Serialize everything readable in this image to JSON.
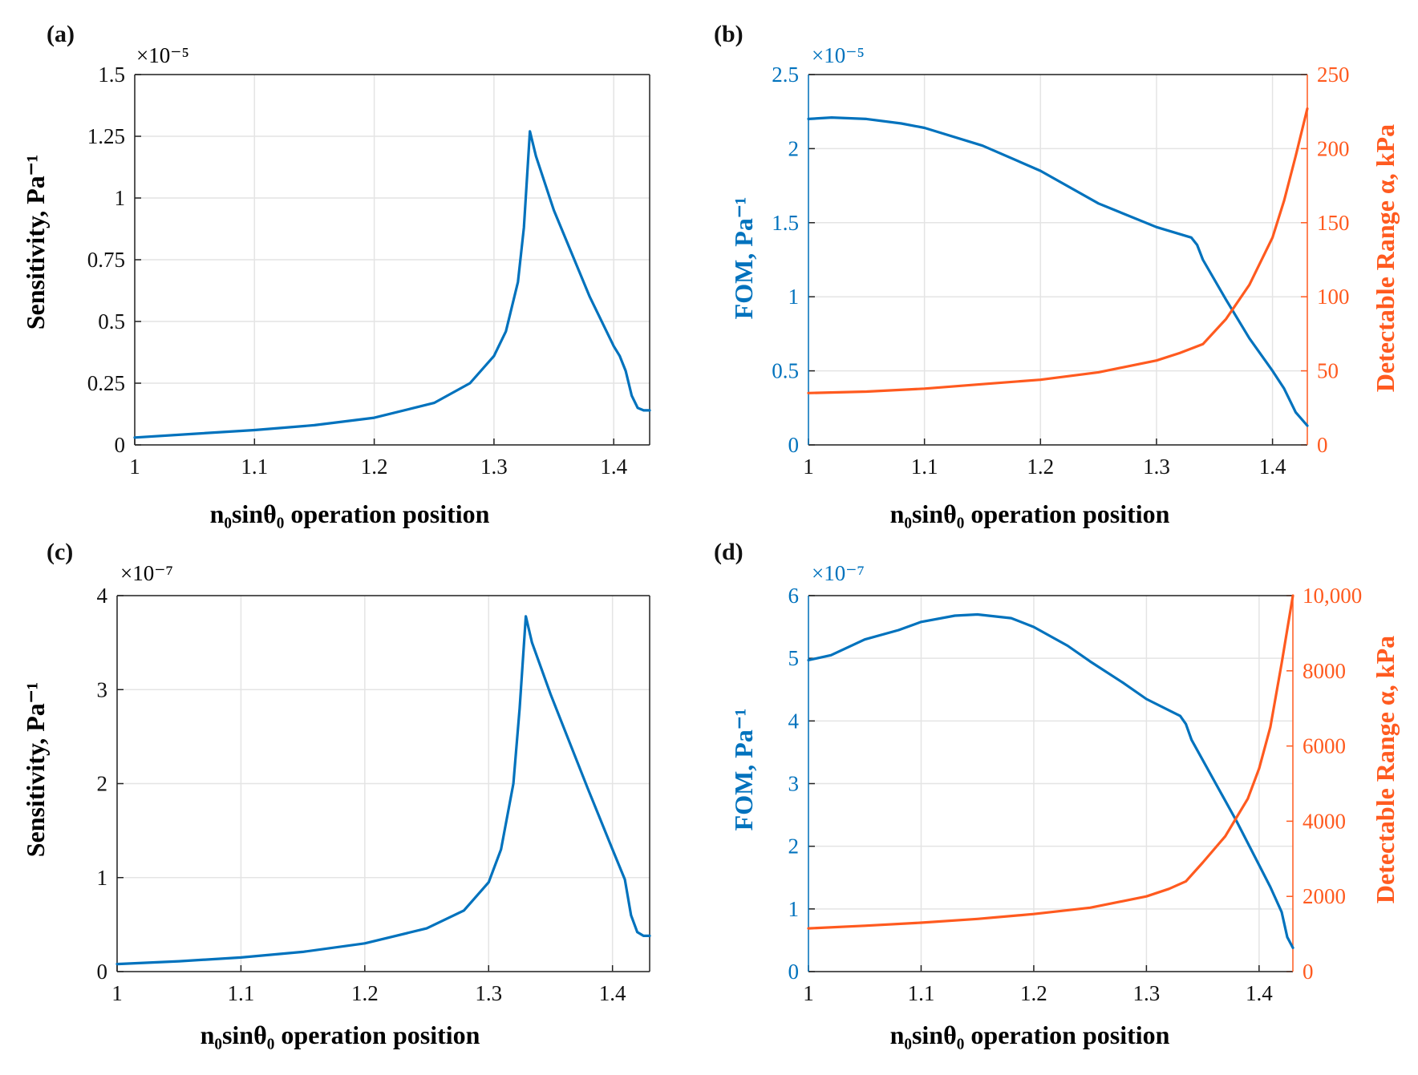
{
  "colors": {
    "blue": "#0072BD",
    "orange": "#FF5A1F",
    "grid": "#e4e4e4",
    "axis": "#222222"
  },
  "chart_data": [
    {
      "id": "a",
      "label": "(a)",
      "type": "line",
      "xlabel": "n₀sinθ₀ operation position",
      "ylabel": "Sensitivity, Pa⁻¹",
      "exponent": "×10⁻⁵",
      "xlim": [
        1,
        1.43
      ],
      "ylim": [
        0,
        1.5
      ],
      "xticks": [
        1,
        1.1,
        1.2,
        1.3,
        1.4
      ],
      "xtick_labels": [
        "1",
        "1.1",
        "1.2",
        "1.3",
        "1.4"
      ],
      "yticks": [
        0,
        0.25,
        0.5,
        0.75,
        1,
        1.25,
        1.5
      ],
      "ytick_labels": [
        "0",
        "0.25",
        "0.5",
        "0.75",
        "1",
        "1.25",
        "1.5"
      ],
      "series": [
        {
          "name": "Sensitivity",
          "axis": "left",
          "color": "blue",
          "x": [
            1.0,
            1.05,
            1.1,
            1.15,
            1.2,
            1.25,
            1.28,
            1.3,
            1.31,
            1.32,
            1.325,
            1.33,
            1.335,
            1.35,
            1.38,
            1.4,
            1.405,
            1.41,
            1.415,
            1.42,
            1.425,
            1.43
          ],
          "y": [
            0.03,
            0.045,
            0.06,
            0.08,
            0.11,
            0.17,
            0.25,
            0.36,
            0.46,
            0.66,
            0.88,
            1.27,
            1.17,
            0.95,
            0.6,
            0.4,
            0.36,
            0.3,
            0.2,
            0.15,
            0.14,
            0.14
          ]
        }
      ]
    },
    {
      "id": "b",
      "label": "(b)",
      "type": "line",
      "xlabel": "n₀sinθ₀ operation position",
      "ylabel": "FOM, Pa⁻¹",
      "ylabel_right": "Detectable Range α, kPa",
      "exponent": "×10⁻⁵",
      "xlim": [
        1,
        1.43
      ],
      "ylim": [
        0,
        2.5
      ],
      "ylim_right": [
        0,
        250
      ],
      "xticks": [
        1,
        1.1,
        1.2,
        1.3,
        1.4
      ],
      "xtick_labels": [
        "1",
        "1.1",
        "1.2",
        "1.3",
        "1.4"
      ],
      "yticks": [
        0,
        0.5,
        1,
        1.5,
        2,
        2.5
      ],
      "ytick_labels": [
        "0",
        "0.5",
        "1",
        "1.5",
        "2",
        "2.5"
      ],
      "yticks_right": [
        0,
        50,
        100,
        150,
        200,
        250
      ],
      "ytick_labels_right": [
        "0",
        "50",
        "100",
        "150",
        "200",
        "250"
      ],
      "series": [
        {
          "name": "FOM",
          "axis": "left",
          "color": "blue",
          "x": [
            1.0,
            1.02,
            1.05,
            1.08,
            1.1,
            1.15,
            1.2,
            1.25,
            1.3,
            1.33,
            1.335,
            1.34,
            1.36,
            1.38,
            1.4,
            1.41,
            1.42,
            1.43
          ],
          "y": [
            2.2,
            2.21,
            2.2,
            2.17,
            2.14,
            2.02,
            1.85,
            1.63,
            1.47,
            1.4,
            1.35,
            1.25,
            0.98,
            0.72,
            0.5,
            0.38,
            0.22,
            0.13
          ]
        },
        {
          "name": "Detectable Range",
          "axis": "right",
          "color": "orange",
          "x": [
            1.0,
            1.05,
            1.1,
            1.15,
            1.2,
            1.25,
            1.3,
            1.32,
            1.34,
            1.36,
            1.38,
            1.4,
            1.41,
            1.42,
            1.43
          ],
          "y": [
            35,
            36,
            38,
            41,
            44,
            49,
            57,
            62,
            68,
            85,
            108,
            140,
            165,
            195,
            227
          ]
        }
      ]
    },
    {
      "id": "c",
      "label": "(c)",
      "type": "line",
      "xlabel": "n₀sinθ₀ operation position",
      "ylabel": "Sensitivity, Pa⁻¹",
      "exponent": "×10⁻⁷",
      "xlim": [
        1,
        1.43
      ],
      "ylim": [
        0,
        4
      ],
      "xticks": [
        1,
        1.1,
        1.2,
        1.3,
        1.4
      ],
      "xtick_labels": [
        "1",
        "1.1",
        "1.2",
        "1.3",
        "1.4"
      ],
      "yticks": [
        0,
        1,
        2,
        3,
        4
      ],
      "ytick_labels": [
        "0",
        "1",
        "2",
        "3",
        "4"
      ],
      "series": [
        {
          "name": "Sensitivity",
          "axis": "left",
          "color": "blue",
          "x": [
            1.0,
            1.05,
            1.1,
            1.15,
            1.2,
            1.25,
            1.28,
            1.3,
            1.31,
            1.32,
            1.325,
            1.33,
            1.335,
            1.35,
            1.38,
            1.4,
            1.41,
            1.415,
            1.42,
            1.425,
            1.43
          ],
          "y": [
            0.08,
            0.11,
            0.15,
            0.21,
            0.3,
            0.46,
            0.65,
            0.95,
            1.3,
            2.0,
            2.8,
            3.78,
            3.5,
            2.95,
            1.95,
            1.3,
            0.98,
            0.6,
            0.42,
            0.38,
            0.38
          ]
        }
      ]
    },
    {
      "id": "d",
      "label": "(d)",
      "type": "line",
      "xlabel": "n₀sinθ₀ operation position",
      "ylabel": "FOM, Pa⁻¹",
      "ylabel_right": "Detectable Range α, kPa",
      "exponent": "×10⁻⁷",
      "xlim": [
        1,
        1.43
      ],
      "ylim": [
        0,
        6
      ],
      "ylim_right": [
        0,
        10000
      ],
      "xticks": [
        1,
        1.1,
        1.2,
        1.3,
        1.4
      ],
      "xtick_labels": [
        "1",
        "1.1",
        "1.2",
        "1.3",
        "1.4"
      ],
      "yticks": [
        0,
        1,
        2,
        3,
        4,
        5,
        6
      ],
      "ytick_labels": [
        "0",
        "1",
        "2",
        "3",
        "4",
        "5",
        "6"
      ],
      "yticks_right": [
        0,
        2000,
        4000,
        6000,
        8000,
        10000
      ],
      "ytick_labels_right": [
        "0",
        "2000",
        "4000",
        "6000",
        "8000",
        "10,000"
      ],
      "series": [
        {
          "name": "FOM",
          "axis": "left",
          "color": "blue",
          "x": [
            1.0,
            1.02,
            1.05,
            1.08,
            1.1,
            1.13,
            1.15,
            1.18,
            1.2,
            1.23,
            1.25,
            1.28,
            1.3,
            1.33,
            1.335,
            1.34,
            1.36,
            1.38,
            1.4,
            1.41,
            1.42,
            1.425,
            1.43
          ],
          "y": [
            4.97,
            5.05,
            5.3,
            5.45,
            5.58,
            5.68,
            5.7,
            5.64,
            5.5,
            5.2,
            4.95,
            4.6,
            4.35,
            4.08,
            3.95,
            3.7,
            3.05,
            2.4,
            1.7,
            1.35,
            0.95,
            0.55,
            0.38
          ]
        },
        {
          "name": "Detectable Range",
          "axis": "right",
          "color": "orange",
          "x": [
            1.0,
            1.05,
            1.1,
            1.15,
            1.2,
            1.25,
            1.3,
            1.32,
            1.335,
            1.35,
            1.37,
            1.39,
            1.4,
            1.41,
            1.42,
            1.43
          ],
          "y": [
            1150,
            1220,
            1300,
            1400,
            1530,
            1700,
            2000,
            2200,
            2400,
            2900,
            3600,
            4600,
            5400,
            6500,
            8200,
            10000
          ]
        }
      ]
    }
  ]
}
